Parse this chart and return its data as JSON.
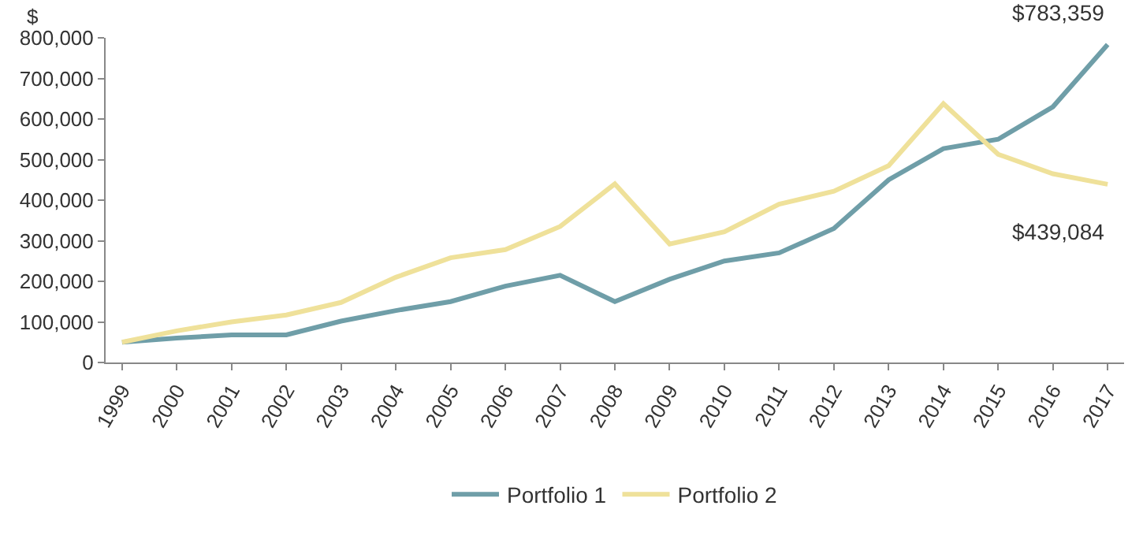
{
  "chart_data": {
    "type": "line",
    "ylabel": "$",
    "categories": [
      "1999",
      "2000",
      "2001",
      "2002",
      "2003",
      "2004",
      "2005",
      "2006",
      "2007",
      "2008",
      "2009",
      "2010",
      "2011",
      "2012",
      "2013",
      "2014",
      "2015",
      "2016",
      "2017"
    ],
    "series": [
      {
        "name": "Portfolio 1",
        "color": "#6f9ea8",
        "values": [
          50000,
          60000,
          68000,
          68000,
          102000,
          128000,
          150000,
          188000,
          215000,
          150000,
          205000,
          250000,
          270000,
          330000,
          450000,
          527000,
          550000,
          630000,
          783359
        ]
      },
      {
        "name": "Portfolio 2",
        "color": "#efe19a",
        "values": [
          50000,
          78000,
          100000,
          117000,
          148000,
          210000,
          258000,
          278000,
          335000,
          440000,
          292000,
          322000,
          390000,
          422000,
          485000,
          638000,
          513000,
          465000,
          439084
        ]
      }
    ],
    "annotations": [
      {
        "text": "$783,359",
        "x": "2017",
        "y": 783359
      },
      {
        "text": "$439,084",
        "x": "2017",
        "y": 439084
      }
    ],
    "ylim": [
      0,
      800000
    ],
    "yticks": [
      {
        "value": 0,
        "label": "0"
      },
      {
        "value": 100000,
        "label": "100,000"
      },
      {
        "value": 200000,
        "label": "200,000"
      },
      {
        "value": 300000,
        "label": "300,000"
      },
      {
        "value": 400000,
        "label": "400,000"
      },
      {
        "value": 500000,
        "label": "500,000"
      },
      {
        "value": 600000,
        "label": "600,000"
      },
      {
        "value": 700000,
        "label": "700,000"
      },
      {
        "value": 800000,
        "label": "800,000"
      }
    ],
    "legend": "bottom",
    "marker": "none",
    "line_style": "solid"
  }
}
